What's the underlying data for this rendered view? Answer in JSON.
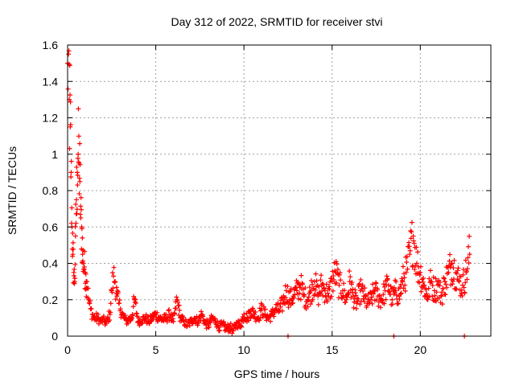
{
  "chart_data": {
    "type": "scatter",
    "title": "Day 312 of 2022, SRMTID for receiver stvi",
    "xlabel": "GPS time / hours",
    "ylabel": "SRMTID / TECUs",
    "xlim": [
      0,
      24
    ],
    "ylim": [
      0,
      1.6
    ],
    "x_ticks": [
      0,
      5,
      10,
      15,
      20
    ],
    "x_tick_labels": [
      "0",
      "5",
      "10",
      "15",
      "20"
    ],
    "y_ticks": [
      0,
      0.2,
      0.4,
      0.6,
      0.8,
      1.0,
      1.2,
      1.4,
      1.6
    ],
    "y_tick_labels": [
      "0",
      "0.2",
      "0.4",
      "0.6",
      "0.8",
      "1",
      "1.2",
      "1.4",
      "1.6"
    ],
    "grid": true,
    "marker": "plus",
    "color": "#ff0000",
    "series": [
      {
        "name": "SRMTID",
        "x": [
          0.0,
          0.05,
          0.1,
          0.15,
          0.2,
          0.25,
          0.3,
          0.35,
          0.4,
          0.45,
          0.5,
          0.55,
          0.6,
          0.65,
          0.7,
          0.75,
          0.8,
          0.85,
          0.9,
          0.95,
          1.0,
          1.05,
          1.1,
          1.2,
          1.3,
          1.4,
          1.5,
          1.6,
          1.7,
          1.8,
          1.9,
          2.0,
          2.1,
          2.2,
          2.3,
          2.4,
          2.5,
          2.6,
          2.7,
          2.8,
          2.9,
          3.0,
          3.1,
          3.2,
          3.3,
          3.4,
          3.5,
          3.6,
          3.8,
          4.0,
          4.2,
          4.4,
          4.6,
          4.8,
          5.0,
          5.2,
          5.4,
          5.6,
          5.8,
          6.0,
          6.2,
          6.4,
          6.6,
          6.8,
          7.0,
          7.2,
          7.4,
          7.6,
          7.8,
          8.0,
          8.2,
          8.4,
          8.6,
          8.8,
          9.0,
          9.2,
          9.4,
          9.6,
          9.8,
          10.0,
          10.2,
          10.4,
          10.6,
          10.8,
          11.0,
          11.2,
          11.4,
          11.6,
          11.8,
          12.0,
          12.2,
          12.4,
          12.6,
          12.8,
          13.0,
          13.2,
          13.4,
          13.6,
          13.8,
          14.0,
          14.2,
          14.4,
          14.6,
          14.8,
          15.0,
          15.2,
          15.4,
          15.6,
          15.8,
          16.0,
          16.2,
          16.4,
          16.6,
          16.8,
          17.0,
          17.2,
          17.4,
          17.6,
          17.8,
          18.0,
          18.2,
          18.4,
          18.6,
          18.8,
          19.0,
          19.2,
          19.4,
          19.6,
          19.8,
          20.0,
          20.2,
          20.4,
          20.6,
          20.8,
          21.0,
          21.2,
          21.4,
          21.6,
          21.8,
          22.0,
          22.2,
          22.4,
          22.6,
          22.8
        ],
        "y": [
          1.5,
          1.55,
          1.3,
          1.15,
          0.9,
          0.6,
          0.45,
          0.35,
          0.3,
          0.55,
          0.75,
          0.9,
          1.0,
          0.95,
          0.85,
          0.65,
          0.6,
          0.45,
          0.4,
          0.38,
          0.35,
          0.3,
          0.3,
          0.2,
          0.15,
          0.12,
          0.1,
          0.1,
          0.1,
          0.09,
          0.08,
          0.09,
          0.08,
          0.07,
          0.1,
          0.12,
          0.25,
          0.33,
          0.3,
          0.22,
          0.18,
          0.15,
          0.12,
          0.1,
          0.09,
          0.08,
          0.1,
          0.09,
          0.2,
          0.08,
          0.09,
          0.1,
          0.08,
          0.1,
          0.12,
          0.1,
          0.09,
          0.1,
          0.12,
          0.08,
          0.2,
          0.1,
          0.08,
          0.06,
          0.08,
          0.1,
          0.08,
          0.12,
          0.07,
          0.06,
          0.1,
          0.08,
          0.05,
          0.06,
          0.04,
          0.05,
          0.03,
          0.07,
          0.06,
          0.12,
          0.1,
          0.14,
          0.12,
          0.1,
          0.15,
          0.12,
          0.1,
          0.12,
          0.15,
          0.14,
          0.18,
          0.25,
          0.2,
          0.22,
          0.25,
          0.28,
          0.22,
          0.2,
          0.25,
          0.3,
          0.22,
          0.28,
          0.25,
          0.22,
          0.3,
          0.35,
          0.28,
          0.25,
          0.2,
          0.3,
          0.22,
          0.18,
          0.25,
          0.22,
          0.18,
          0.2,
          0.25,
          0.22,
          0.2,
          0.25,
          0.28,
          0.2,
          0.25,
          0.22,
          0.3,
          0.35,
          0.45,
          0.55,
          0.4,
          0.35,
          0.28,
          0.22,
          0.3,
          0.25,
          0.28,
          0.22,
          0.3,
          0.35,
          0.4,
          0.35,
          0.3,
          0.28,
          0.35,
          0.45
        ]
      }
    ],
    "zero_markers_x": [
      12.5,
      18.5,
      22.5
    ]
  }
}
